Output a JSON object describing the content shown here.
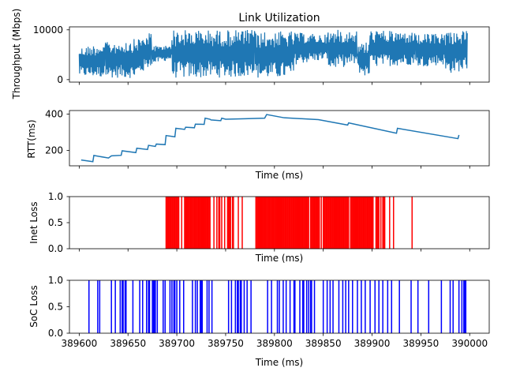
{
  "chart_data": [
    {
      "type": "line",
      "title": "Link Utilization",
      "ylabel": "Throughput (Mbps)",
      "xlabel": "",
      "xlim": [
        389590,
        390020
      ],
      "ylim": [
        -500,
        10600
      ],
      "yticks": [
        0,
        10000
      ],
      "xticks": [
        389600,
        389650,
        389700,
        389750,
        389800,
        389850,
        389900,
        389950,
        390000
      ],
      "show_xtick_labels": false,
      "color": "#1f77b4",
      "series": [
        {
          "x_range": [
            389600,
            389998
          ],
          "segments": [
            {
              "x": [
                389600,
                389627
              ],
              "low": [
                600,
                400
              ],
              "high": [
                6500,
                7500
              ]
            },
            {
              "x": [
                389627,
                389658
              ],
              "low": [
                400,
                300
              ],
              "high": [
                7500,
                8200
              ]
            },
            {
              "x": [
                389658,
                389674
              ],
              "low": [
                300,
                2800
              ],
              "high": [
                8200,
                9500
              ]
            },
            {
              "x": [
                389674,
                389685
              ],
              "low": [
                3000,
                3600
              ],
              "high": [
                7000,
                6800
              ]
            },
            {
              "x": [
                389685,
                389695
              ],
              "low": [
                3600,
                4000
              ],
              "high": [
                6800,
                7200
              ]
            },
            {
              "x": [
                389695,
                389705
              ],
              "low": [
                300,
                300
              ],
              "high": [
                10000,
                10000
              ]
            },
            {
              "x": [
                389705,
                389780
              ],
              "low": [
                300,
                500
              ],
              "high": [
                10000,
                10000
              ]
            },
            {
              "x": [
                389780,
                389820
              ],
              "low": [
                200,
                300
              ],
              "high": [
                9500,
                9800
              ]
            },
            {
              "x": [
                389820,
                389855
              ],
              "low": [
                3000,
                4000
              ],
              "high": [
                9500,
                9000
              ]
            },
            {
              "x": [
                389855,
                389885
              ],
              "low": [
                2000,
                3000
              ],
              "high": [
                10000,
                10000
              ]
            },
            {
              "x": [
                389885,
                389898
              ],
              "low": [
                1500,
                200
              ],
              "high": [
                7000,
                8000
              ]
            },
            {
              "x": [
                389898,
                389945
              ],
              "low": [
                2500,
                3000
              ],
              "high": [
                10000,
                9500
              ]
            },
            {
              "x": [
                389945,
                389975
              ],
              "low": [
                2500,
                3000
              ],
              "high": [
                9000,
                9500
              ]
            },
            {
              "x": [
                389975,
                389998
              ],
              "low": [
                1000,
                2000
              ],
              "high": [
                10000,
                9800
              ]
            }
          ]
        }
      ]
    },
    {
      "type": "line",
      "ylabel": "RTT(ms)",
      "xlabel": "Time (ms)",
      "xlim": [
        389590,
        390020
      ],
      "ylim": [
        115,
        420
      ],
      "yticks": [
        200,
        400
      ],
      "xticks": [
        389600,
        389650,
        389700,
        389750,
        389800,
        389850,
        389900,
        389950,
        390000
      ],
      "show_xtick_labels": false,
      "color": "#1f77b4",
      "series": [
        {
          "x": [
            389602,
            389614,
            389615,
            389630,
            389633,
            389643,
            389644,
            389658,
            389659,
            389670,
            389671,
            389678,
            389679,
            389688,
            389689,
            389698,
            389699,
            389708,
            389709,
            389718,
            389719,
            389728,
            389729,
            389734,
            389735,
            389745,
            389746,
            389750,
            389770,
            389790,
            389792,
            389810,
            389845,
            389875,
            389876,
            389925,
            389926,
            389988,
            389989
          ],
          "y": [
            147,
            138,
            172,
            158,
            170,
            173,
            198,
            188,
            212,
            205,
            228,
            222,
            235,
            232,
            282,
            275,
            322,
            316,
            328,
            325,
            345,
            344,
            378,
            372,
            368,
            364,
            378,
            372,
            375,
            378,
            398,
            380,
            370,
            340,
            352,
            295,
            322,
            265,
            285
          ]
        }
      ]
    },
    {
      "type": "bar",
      "ylabel": "Inet Loss",
      "xlabel": "Time (ms)",
      "xlim": [
        389590,
        390020
      ],
      "ylim": [
        0,
        1.0
      ],
      "yticks": [
        0.0,
        0.5,
        1.0
      ],
      "xticks": [
        389600,
        389650,
        389700,
        389750,
        389800,
        389850,
        389900,
        389950,
        390000
      ],
      "show_xtick_labels": false,
      "color": "#ff0000",
      "value": 1.0,
      "x": [
        389689,
        389690,
        389691,
        389692,
        389693,
        389694,
        389695,
        389696,
        389697,
        389698,
        389699,
        389700,
        389701,
        389702,
        389705,
        389708,
        389709,
        389710,
        389711,
        389712,
        389713,
        389714,
        389715,
        389716,
        389717,
        389718,
        389719,
        389720,
        389721,
        389722,
        389723,
        389724,
        389725,
        389726,
        389727,
        389728,
        389729,
        389730,
        389731,
        389732,
        389733,
        389734,
        389738,
        389741,
        389743,
        389744,
        389746,
        389749,
        389752,
        389753,
        389754,
        389755,
        389757,
        389758,
        389763,
        389767,
        389781,
        389782,
        389783,
        389784,
        389785,
        389786,
        389787,
        389788,
        389789,
        389790,
        389791,
        389792,
        389793,
        389794,
        389795,
        389796,
        389797,
        389798,
        389799,
        389800,
        389801,
        389802,
        389803,
        389804,
        389805,
        389806,
        389807,
        389808,
        389809,
        389810,
        389811,
        389812,
        389813,
        389814,
        389815,
        389816,
        389817,
        389818,
        389819,
        389820,
        389821,
        389822,
        389823,
        389824,
        389825,
        389826,
        389827,
        389828,
        389829,
        389830,
        389831,
        389832,
        389833,
        389834,
        389835,
        389837,
        389838,
        389839,
        389840,
        389841,
        389842,
        389843,
        389844,
        389845,
        389846,
        389848,
        389850,
        389851,
        389852,
        389853,
        389854,
        389855,
        389856,
        389857,
        389858,
        389859,
        389860,
        389861,
        389862,
        389863,
        389864,
        389865,
        389866,
        389867,
        389868,
        389869,
        389870,
        389871,
        389872,
        389873,
        389874,
        389875,
        389876,
        389878,
        389879,
        389880,
        389881,
        389882,
        389883,
        389884,
        389885,
        389886,
        389887,
        389888,
        389889,
        389890,
        389891,
        389892,
        389893,
        389894,
        389895,
        389896,
        389897,
        389898,
        389899,
        389900,
        389901,
        389904,
        389905,
        389906,
        389907,
        389909,
        389911,
        389912,
        389913,
        389918,
        389922,
        389941
      ]
    },
    {
      "type": "bar",
      "ylabel": "SoC Loss",
      "xlabel": "Time (ms)",
      "xlim": [
        389590,
        390020
      ],
      "ylim": [
        0,
        1.0
      ],
      "yticks": [
        0.0,
        0.5,
        1.0
      ],
      "xticks": [
        389600,
        389650,
        389700,
        389750,
        389800,
        389850,
        389900,
        389950,
        390000
      ],
      "xtick_labels": [
        "389600",
        "389650",
        "389700",
        "389750",
        "389800",
        "389850",
        "389900",
        "389950",
        "390000"
      ],
      "show_xtick_labels": true,
      "color": "#0000ff",
      "value": 1.0,
      "x": [
        389610,
        389619,
        389621,
        389633,
        389637,
        389642,
        389644,
        389645,
        389647,
        389648,
        389655,
        389662,
        389665,
        389669,
        389671,
        389672,
        389675,
        389676,
        389677,
        389678,
        389680,
        389686,
        389688,
        389693,
        389695,
        389697,
        389698,
        389700,
        389703,
        389707,
        389716,
        389719,
        389721,
        389724,
        389725,
        389726,
        389731,
        389733,
        389736,
        389753,
        389756,
        389760,
        389762,
        389763,
        389765,
        389766,
        389769,
        389772,
        389776,
        389793,
        389797,
        389803,
        389805,
        389809,
        389812,
        389816,
        389820,
        389821,
        389826,
        389829,
        389830,
        389833,
        389835,
        389837,
        389838,
        389841,
        389850,
        389854,
        389857,
        389860,
        389866,
        389870,
        389873,
        389876,
        389880,
        389885,
        389889,
        389893,
        389898,
        389903,
        389907,
        389911,
        389916,
        389920,
        389928,
        389940,
        389947,
        389958,
        389971,
        389980,
        389983,
        389989,
        389992,
        389994,
        389995,
        389996
      ]
    }
  ]
}
